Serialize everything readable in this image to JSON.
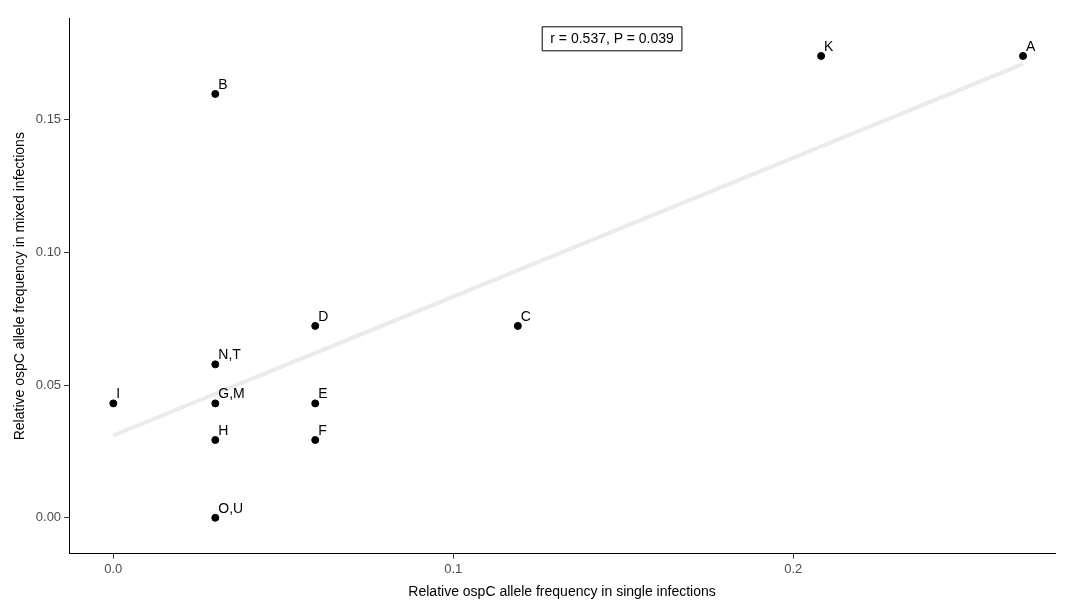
{
  "chart_data": {
    "type": "scatter",
    "xlabel": "Relative ospC allele frequency in single infections",
    "ylabel": "Relative ospC allele frequency in mixed infections",
    "xlim": [
      -0.013,
      0.277
    ],
    "ylim": [
      -0.0135,
      0.188
    ],
    "xticks": [
      {
        "value": 0,
        "label": "0.0"
      },
      0.1,
      0.2
    ],
    "yticks": [
      {
        "value": 0,
        "label": "0.00"
      },
      0.05,
      {
        "value": 0.1,
        "label": "0.10"
      },
      0.15
    ],
    "grid": false,
    "legend": false,
    "marker": "circle",
    "series": [
      {
        "color": "#000000",
        "x": [
          0.2676,
          0.2082,
          0.03,
          0.119,
          0.0594,
          0.0594,
          0.0594,
          0.03,
          0.03,
          0,
          0.03,
          0.03
        ],
        "values": [
          0.174,
          0.174,
          0.1597,
          0.0723,
          0.0723,
          0.0431,
          0.0293,
          0.0431,
          0.0293,
          0.0431,
          0.0578,
          0
        ]
      },
      {
        "type": "line",
        "marker": "none",
        "color": "#ebebeb",
        "x": [
          0,
          0.2676
        ],
        "values": [
          0.031,
          0.171
        ]
      }
    ],
    "annotations": [
      "r = 0.537, P = 0.039",
      {
        "text": "A",
        "x": 0.2676,
        "y": 0.174
      },
      {
        "text": "K",
        "x": 0.2082,
        "y": 0.174
      },
      {
        "text": "B",
        "x": 0.03,
        "y": 0.1597
      },
      {
        "text": "C",
        "x": 0.119,
        "y": 0.0723
      },
      {
        "text": "D",
        "x": 0.0594,
        "y": 0.0723
      },
      {
        "text": "E",
        "x": 0.0594,
        "y": 0.0431
      },
      {
        "text": "F",
        "x": 0.0594,
        "y": 0.0293
      },
      {
        "text": "G,M",
        "x": 0.03,
        "y": 0.0431
      },
      {
        "text": "H",
        "x": 0.03,
        "y": 0.0293
      },
      {
        "text": "I",
        "x": 0,
        "y": 0.0431
      },
      {
        "text": "N,T",
        "x": 0.03,
        "y": 0.0578
      },
      {
        "text": "O,U",
        "x": 0.03,
        "y": 0
      }
    ]
  }
}
